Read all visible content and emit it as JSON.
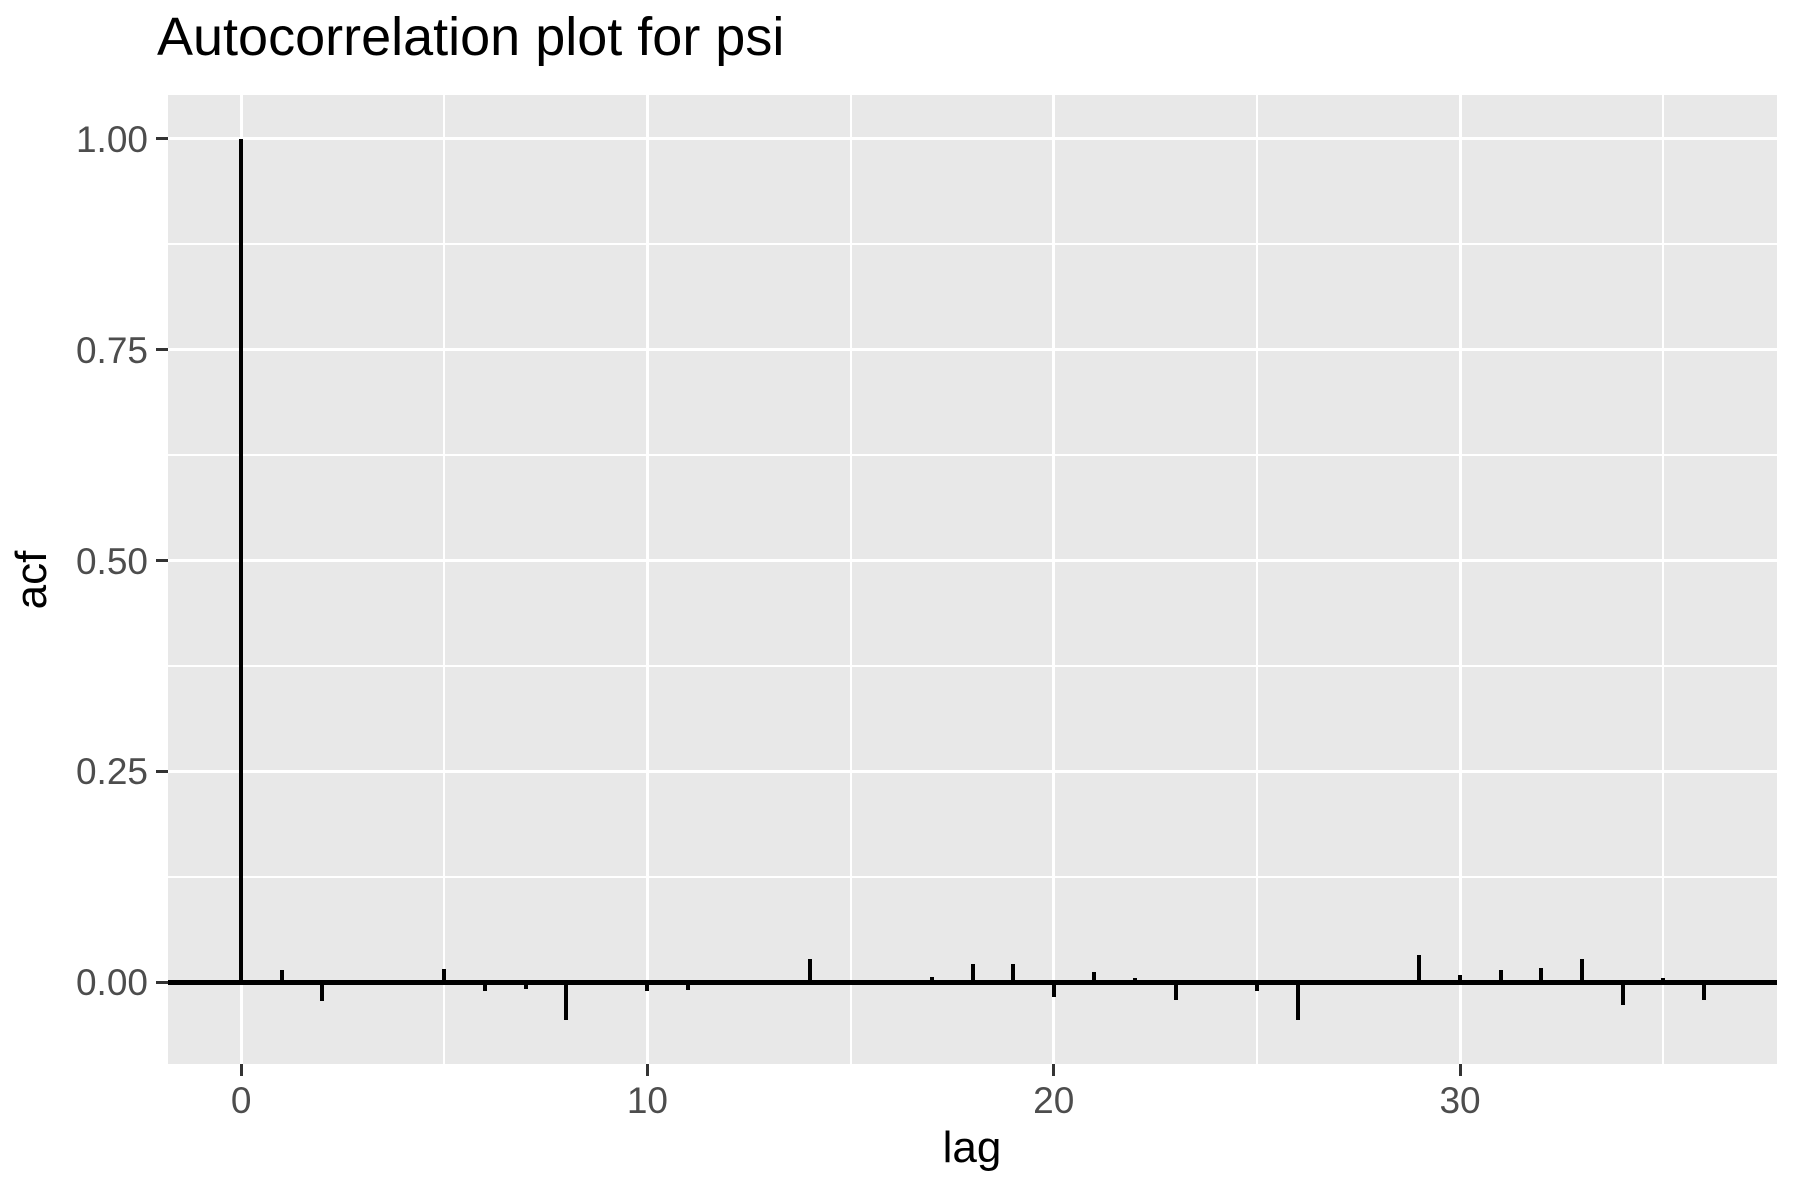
{
  "title": "Autocorrelation plot for psi",
  "axes": {
    "x_title": "lag",
    "y_title": "acf"
  },
  "chart_data": {
    "type": "bar",
    "title": "Autocorrelation plot for psi",
    "xlabel": "lag",
    "ylabel": "acf",
    "x": [
      0,
      1,
      2,
      3,
      4,
      5,
      6,
      7,
      8,
      9,
      10,
      11,
      12,
      13,
      14,
      15,
      16,
      17,
      18,
      19,
      20,
      21,
      22,
      23,
      24,
      25,
      26,
      27,
      28,
      29,
      30,
      31,
      32,
      33,
      34,
      35,
      36
    ],
    "values": [
      1.0,
      0.015,
      -0.022,
      0.0,
      0.0,
      0.016,
      -0.011,
      -0.008,
      -0.045,
      0.0,
      -0.011,
      -0.009,
      0.0,
      0.0,
      0.028,
      0.0,
      0.0,
      0.006,
      0.022,
      0.021,
      -0.018,
      0.012,
      0.005,
      -0.021,
      0.0,
      -0.011,
      -0.045,
      0.0,
      0.0,
      0.032,
      0.008,
      0.014,
      0.017,
      0.027,
      -0.027,
      0.005,
      -0.021
    ],
    "xlim": [
      -1.8,
      37.8
    ],
    "ylim": [
      -0.097,
      1.052
    ],
    "x_major_ticks": [
      0,
      10,
      20,
      30
    ],
    "x_tick_labels": [
      "0",
      "10",
      "20",
      "30"
    ],
    "x_minor_gridlines": [
      5,
      15,
      25,
      35
    ],
    "y_major_ticks": [
      0.0,
      0.25,
      0.5,
      0.75,
      1.0
    ],
    "y_tick_labels": [
      "0.00",
      "0.25",
      "0.50",
      "0.75",
      "1.00"
    ],
    "y_minor_gridlines": [
      0.125,
      0.375,
      0.625,
      0.875
    ],
    "grid": true,
    "legend": false,
    "baseline": 0,
    "panel_bg": "#E8E8E8",
    "grid_color": "#FFFFFF",
    "bar_color": "#000000",
    "axis_text_color": "#4D4D4D"
  }
}
